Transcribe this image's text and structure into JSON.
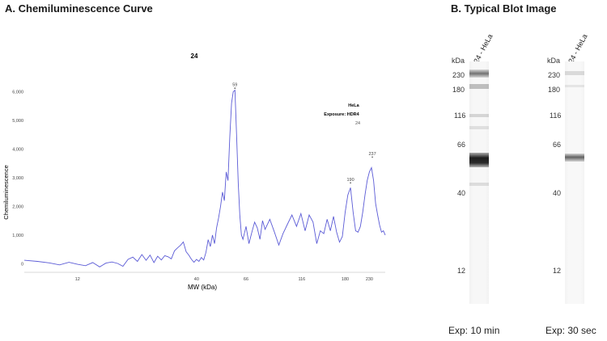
{
  "panel_a": {
    "title": "A. Chemiluminescence Curve",
    "legend_lines": [
      "HeLa",
      "Exposure: HDR4",
      "24"
    ]
  },
  "panel_b": {
    "title": "B.   Typical Blot Image",
    "blots": [
      {
        "lane_label": "24 - HeLa",
        "kda_label": "kDa",
        "markers": [
          "230",
          "180",
          "116",
          "66",
          "40",
          "12"
        ],
        "exposure": "Exp: 10 min"
      },
      {
        "lane_label": "24 - HeLa",
        "kda_label": "kDa",
        "markers": [
          "230",
          "180",
          "116",
          "66",
          "40",
          "12"
        ],
        "exposure": "Exp: 30 sec"
      }
    ]
  },
  "chart_data": {
    "type": "line",
    "title": "24",
    "xlabel": "MW (kDa)",
    "ylabel": "Chemiluminescence",
    "x_ticks": [
      "12",
      "40",
      "66",
      "116",
      "180",
      "230"
    ],
    "y_ticks": [
      "0",
      "1,000",
      "2,000",
      "3,000",
      "4,000",
      "5,000",
      "6,000"
    ],
    "ylim": [
      -300,
      7000
    ],
    "peak_labels": [
      {
        "label": "59",
        "x": 59,
        "y": 6050
      },
      {
        "label": "190",
        "x": 190,
        "y": 2750
      },
      {
        "label": "237",
        "x": 237,
        "y": 3650
      }
    ],
    "series": [
      {
        "color": "#5b5bd6",
        "points": [
          [
            7.0,
            120
          ],
          [
            8.0,
            80
          ],
          [
            9.0,
            30
          ],
          [
            10.0,
            -40
          ],
          [
            11.0,
            50
          ],
          [
            12.0,
            -20
          ],
          [
            13.0,
            -70
          ],
          [
            14.0,
            40
          ],
          [
            15.0,
            -110
          ],
          [
            16.0,
            20
          ],
          [
            17.0,
            60
          ],
          [
            18.0,
            10
          ],
          [
            19.0,
            -90
          ],
          [
            20.0,
            150
          ],
          [
            21.0,
            230
          ],
          [
            22.0,
            80
          ],
          [
            23.0,
            320
          ],
          [
            24.0,
            120
          ],
          [
            25.0,
            300
          ],
          [
            26.0,
            40
          ],
          [
            27.0,
            260
          ],
          [
            28.0,
            130
          ],
          [
            29.0,
            280
          ],
          [
            30.0,
            240
          ],
          [
            31.0,
            170
          ],
          [
            32.0,
            450
          ],
          [
            33.0,
            550
          ],
          [
            34.0,
            640
          ],
          [
            35.0,
            760
          ],
          [
            36.0,
            420
          ],
          [
            37.0,
            300
          ],
          [
            38.0,
            150
          ],
          [
            39.0,
            50
          ],
          [
            40.0,
            150
          ],
          [
            41.0,
            80
          ],
          [
            42.0,
            220
          ],
          [
            43.0,
            130
          ],
          [
            44.0,
            400
          ],
          [
            45.0,
            840
          ],
          [
            46.0,
            600
          ],
          [
            47.0,
            1000
          ],
          [
            48.0,
            700
          ],
          [
            49.0,
            1250
          ],
          [
            50.0,
            1600
          ],
          [
            51.0,
            2000
          ],
          [
            52.0,
            2500
          ],
          [
            53.0,
            2200
          ],
          [
            54.0,
            3200
          ],
          [
            55.0,
            2900
          ],
          [
            56.0,
            4400
          ],
          [
            57.0,
            5600
          ],
          [
            58.0,
            6000
          ],
          [
            59.0,
            6050
          ],
          [
            60.0,
            4500
          ],
          [
            61.0,
            2800
          ],
          [
            62.0,
            1700
          ],
          [
            63.0,
            1000
          ],
          [
            64.0,
            850
          ],
          [
            66.0,
            1300
          ],
          [
            68.0,
            700
          ],
          [
            70.0,
            1100
          ],
          [
            72.0,
            1450
          ],
          [
            74.0,
            1250
          ],
          [
            76.0,
            850
          ],
          [
            78.0,
            1500
          ],
          [
            80.0,
            1200
          ],
          [
            84.0,
            1550
          ],
          [
            88.0,
            1100
          ],
          [
            92.0,
            650
          ],
          [
            96.0,
            1050
          ],
          [
            100.0,
            1350
          ],
          [
            105.0,
            1700
          ],
          [
            110.0,
            1300
          ],
          [
            115.0,
            1750
          ],
          [
            120.0,
            1150
          ],
          [
            125.0,
            1700
          ],
          [
            130.0,
            1450
          ],
          [
            135.0,
            700
          ],
          [
            140.0,
            1150
          ],
          [
            145.0,
            1050
          ],
          [
            150.0,
            1550
          ],
          [
            155.0,
            1150
          ],
          [
            160.0,
            1650
          ],
          [
            165.0,
            1100
          ],
          [
            170.0,
            750
          ],
          [
            175.0,
            950
          ],
          [
            180.0,
            1800
          ],
          [
            185.0,
            2400
          ],
          [
            190.0,
            2650
          ],
          [
            195.0,
            1800
          ],
          [
            200.0,
            1150
          ],
          [
            205.0,
            1100
          ],
          [
            210.0,
            1300
          ],
          [
            215.0,
            1800
          ],
          [
            220.0,
            2400
          ],
          [
            225.0,
            2900
          ],
          [
            230.0,
            3200
          ],
          [
            235.0,
            3350
          ],
          [
            240.0,
            2900
          ],
          [
            245.0,
            2100
          ],
          [
            250.0,
            1700
          ],
          [
            255.0,
            1350
          ],
          [
            260.0,
            1100
          ],
          [
            265.0,
            1150
          ],
          [
            270.0,
            1000
          ]
        ]
      }
    ],
    "grid": false
  }
}
